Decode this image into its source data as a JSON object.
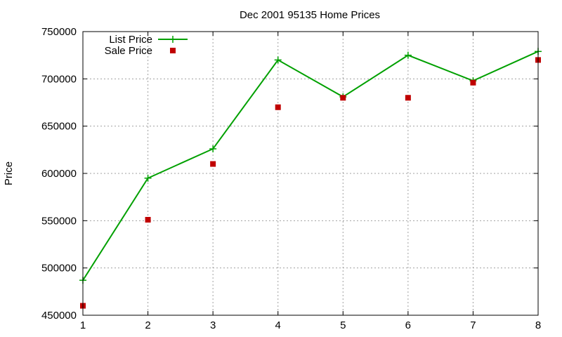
{
  "chart_data": {
    "type": "line",
    "title": "Dec 2001 95135 Home Prices",
    "xlabel": "",
    "ylabel": "Price",
    "x": [
      1,
      2,
      3,
      4,
      5,
      6,
      7,
      8
    ],
    "xlim": [
      1,
      8
    ],
    "ylim": [
      450000,
      750000
    ],
    "x_ticks": [
      "1",
      "2",
      "3",
      "4",
      "5",
      "6",
      "7",
      "8"
    ],
    "y_ticks": [
      "450000",
      "500000",
      "550000",
      "600000",
      "650000",
      "700000",
      "750000"
    ],
    "grid": true,
    "legend_position": "top-left",
    "series": [
      {
        "name": "List Price",
        "style": "linespoints",
        "marker": "plus",
        "color": "#00a000",
        "values": [
          487000,
          595000,
          626000,
          720000,
          681000,
          725000,
          698000,
          729000
        ]
      },
      {
        "name": "Sale Price",
        "style": "points",
        "marker": "square",
        "color": "#c00000",
        "values": [
          460000,
          551000,
          610000,
          670000,
          680000,
          680000,
          696000,
          720000
        ]
      }
    ]
  }
}
